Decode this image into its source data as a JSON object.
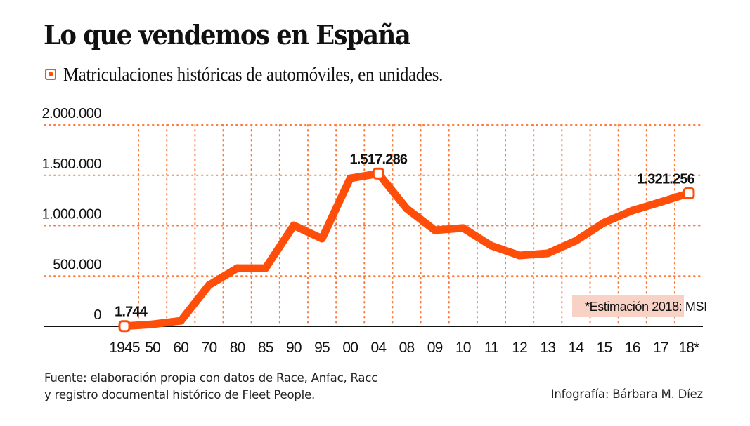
{
  "header": {
    "title": "Lo que vendemos en España",
    "subtitle": "Matriculaciones históricas de automóviles, en unidades.",
    "legend_icon": "orange-square-marker-icon"
  },
  "colors": {
    "line": "#ff4d0a",
    "grid": "#ff7a3d",
    "note_bg": "#f9d2c6",
    "axis": "#111111",
    "text": "#111111"
  },
  "footer": {
    "source_line1": "Fuente: elaboración propia con datos de Race, Anfac, Racc",
    "source_line2": "y registro documental histórico de Fleet People.",
    "credit": "Infografía: Bárbara M. Díez"
  },
  "chart_data": {
    "type": "line",
    "title": "Lo que vendemos en España",
    "subtitle": "Matriculaciones históricas de automóviles, en unidades.",
    "xlabel": "",
    "ylabel": "",
    "ylim": [
      0,
      2000000
    ],
    "grid": true,
    "legend": "none",
    "y_ticks": [
      {
        "value": 0,
        "label": "0"
      },
      {
        "value": 500000,
        "label": "500.000"
      },
      {
        "value": 1000000,
        "label": "1.000.000"
      },
      {
        "value": 1500000,
        "label": "1.500.000"
      },
      {
        "value": 2000000,
        "label": "2.000.000"
      }
    ],
    "categories": [
      "1945",
      "50",
      "60",
      "70",
      "80",
      "85",
      "90",
      "95",
      "00",
      "04",
      "08",
      "09",
      "10",
      "11",
      "12",
      "13",
      "14",
      "15",
      "16",
      "17",
      "18*"
    ],
    "series": [
      {
        "name": "Matriculaciones",
        "values": [
          1744,
          20000,
          55000,
          410000,
          578000,
          578000,
          1003000,
          871000,
          1470000,
          1517286,
          1170000,
          955000,
          976000,
          801000,
          704000,
          725000,
          850000,
          1031000,
          1150000,
          1234000,
          1321256
        ]
      }
    ],
    "annotations": [
      {
        "category": "1945",
        "label": "1.744",
        "marker": true
      },
      {
        "category": "04",
        "label": "1.517.286",
        "marker": true
      },
      {
        "category": "18*",
        "label": "1.321.256",
        "marker": true
      }
    ],
    "note": "*Estimación 2018: MSI"
  }
}
